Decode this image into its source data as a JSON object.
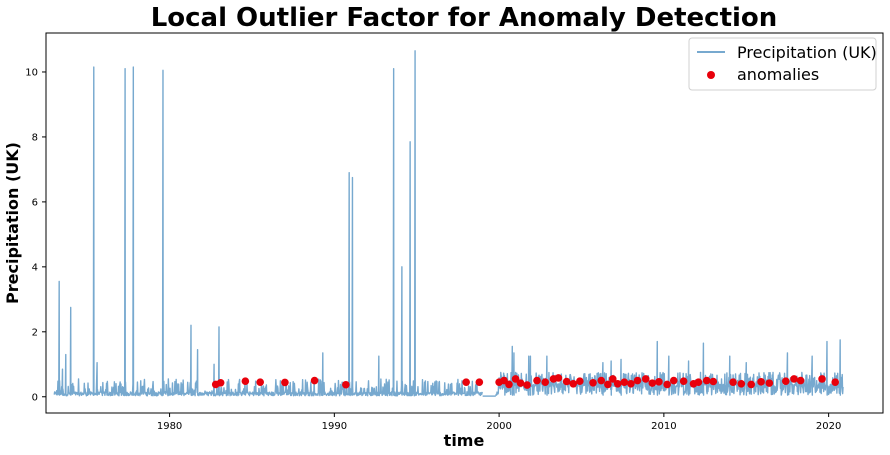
{
  "chart_data": {
    "type": "line",
    "title": "Local Outlier Factor for Anomaly Detection",
    "xlabel": "time",
    "ylabel": "Precipitation (UK)",
    "xlim": [
      1972.5,
      2023.3
    ],
    "ylim": [
      -0.5,
      11.2
    ],
    "xticks": [
      1980,
      1990,
      2000,
      2010,
      2020
    ],
    "yticks": [
      0,
      2,
      4,
      6,
      8,
      10
    ],
    "grid": false,
    "legend_position": "top-right",
    "colors": {
      "line": "#77a9cf",
      "anomaly": "#e8000b"
    },
    "series": [
      {
        "name": "Precipitation (UK)",
        "kind": "line",
        "baseline": 0.05,
        "start": 1973.0,
        "end": 2020.9,
        "gap": [
          1999.0,
          1999.8
        ],
        "spikes": [
          [
            1973.3,
            3.55
          ],
          [
            1973.5,
            0.85
          ],
          [
            1973.7,
            1.3
          ],
          [
            1974.0,
            2.75
          ],
          [
            1975.4,
            10.15
          ],
          [
            1975.6,
            1.05
          ],
          [
            1977.3,
            10.1
          ],
          [
            1977.8,
            10.15
          ],
          [
            1979.6,
            10.05
          ],
          [
            1981.3,
            2.2
          ],
          [
            1981.7,
            1.45
          ],
          [
            1982.7,
            1.0
          ],
          [
            1983.0,
            2.15
          ],
          [
            1989.3,
            1.35
          ],
          [
            1990.9,
            6.9
          ],
          [
            1991.1,
            6.75
          ],
          [
            1992.7,
            1.25
          ],
          [
            1993.6,
            10.1
          ],
          [
            1994.1,
            4.0
          ],
          [
            1994.6,
            7.85
          ],
          [
            1994.9,
            10.65
          ],
          [
            2000.8,
            1.55
          ],
          [
            2000.9,
            1.35
          ],
          [
            2001.8,
            1.25
          ],
          [
            2001.9,
            1.25
          ],
          [
            2002.9,
            1.25
          ],
          [
            2006.3,
            1.05
          ],
          [
            2006.8,
            1.1
          ],
          [
            2007.4,
            1.15
          ],
          [
            2009.6,
            1.7
          ],
          [
            2010.3,
            1.25
          ],
          [
            2011.5,
            1.1
          ],
          [
            2012.4,
            1.65
          ],
          [
            2014.0,
            1.25
          ],
          [
            2015.0,
            1.05
          ],
          [
            2017.5,
            1.35
          ],
          [
            2019.0,
            1.25
          ],
          [
            2019.9,
            1.7
          ],
          [
            2020.7,
            1.75
          ]
        ]
      },
      {
        "name": "anomalies",
        "kind": "scatter",
        "points": [
          [
            1982.8,
            0.38
          ],
          [
            1983.1,
            0.43
          ],
          [
            1984.6,
            0.48
          ],
          [
            1985.5,
            0.45
          ],
          [
            1987.0,
            0.44
          ],
          [
            1988.8,
            0.5
          ],
          [
            1990.7,
            0.37
          ],
          [
            1998.0,
            0.45
          ],
          [
            1998.8,
            0.45
          ],
          [
            2000.0,
            0.45
          ],
          [
            2000.3,
            0.5
          ],
          [
            2000.6,
            0.38
          ],
          [
            2001.0,
            0.55
          ],
          [
            2001.3,
            0.42
          ],
          [
            2001.7,
            0.36
          ],
          [
            2002.3,
            0.5
          ],
          [
            2002.8,
            0.45
          ],
          [
            2003.3,
            0.55
          ],
          [
            2003.6,
            0.58
          ],
          [
            2004.1,
            0.47
          ],
          [
            2004.5,
            0.4
          ],
          [
            2004.9,
            0.48
          ],
          [
            2005.7,
            0.43
          ],
          [
            2006.2,
            0.5
          ],
          [
            2006.6,
            0.38
          ],
          [
            2006.9,
            0.55
          ],
          [
            2007.2,
            0.4
          ],
          [
            2007.6,
            0.45
          ],
          [
            2008.0,
            0.4
          ],
          [
            2008.4,
            0.5
          ],
          [
            2008.9,
            0.55
          ],
          [
            2009.3,
            0.42
          ],
          [
            2009.7,
            0.46
          ],
          [
            2010.2,
            0.38
          ],
          [
            2010.6,
            0.5
          ],
          [
            2011.2,
            0.48
          ],
          [
            2011.8,
            0.4
          ],
          [
            2012.1,
            0.45
          ],
          [
            2012.6,
            0.5
          ],
          [
            2013.0,
            0.47
          ],
          [
            2014.2,
            0.45
          ],
          [
            2014.7,
            0.4
          ],
          [
            2015.3,
            0.38
          ],
          [
            2015.9,
            0.46
          ],
          [
            2016.4,
            0.42
          ],
          [
            2017.4,
            0.48
          ],
          [
            2017.9,
            0.55
          ],
          [
            2018.3,
            0.5
          ],
          [
            2019.6,
            0.55
          ],
          [
            2020.4,
            0.45
          ]
        ]
      }
    ]
  }
}
